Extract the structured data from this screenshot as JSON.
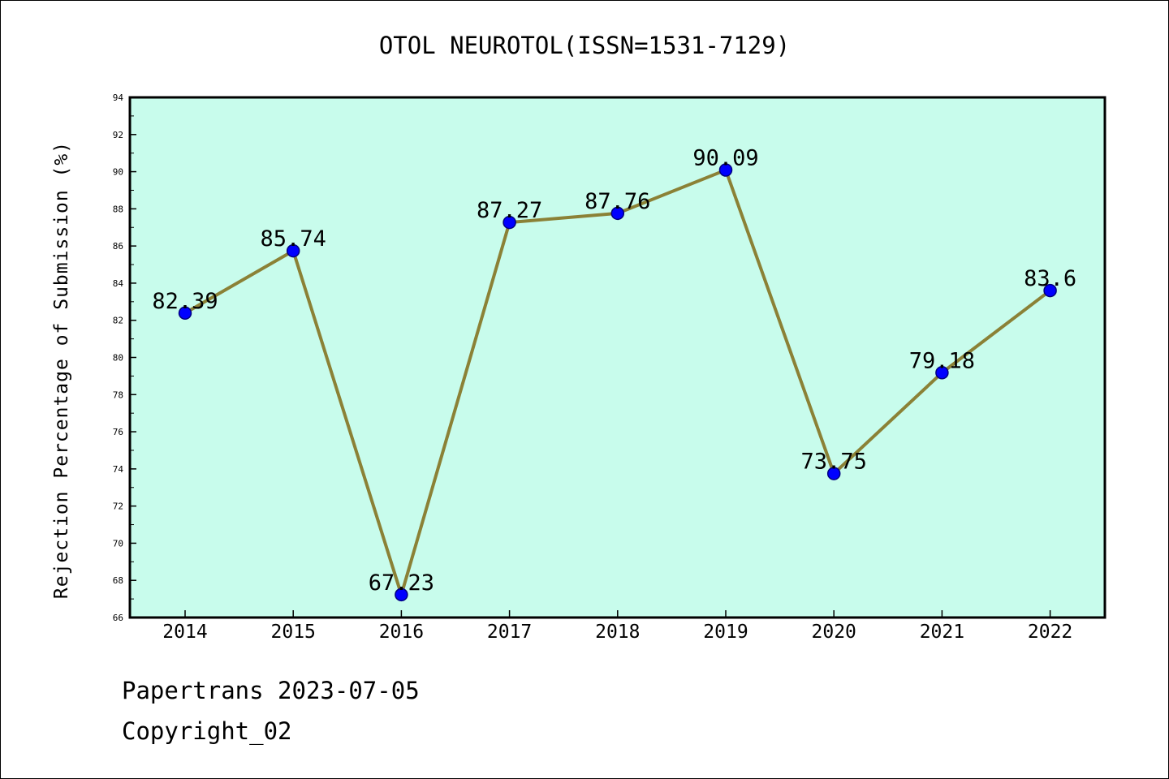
{
  "colors": {
    "plot_background": "#c8fcec",
    "line": "#8b8136",
    "marker_fill": "#0000ff",
    "marker_stroke": "#000080",
    "frame": "#000000"
  },
  "footer": {
    "line1": "Papertrans 2023-07-05",
    "line2": "Copyright_02"
  },
  "chart_data": {
    "type": "line",
    "title": "OTOL NEUROTOL(ISSN=1531-7129)",
    "xlabel": "",
    "ylabel": "Rejection Percentage of Submission (%)",
    "categories": [
      "2014",
      "2015",
      "2016",
      "2017",
      "2018",
      "2019",
      "2020",
      "2021",
      "2022"
    ],
    "values": [
      82.39,
      85.74,
      67.23,
      87.27,
      87.76,
      90.09,
      73.75,
      79.18,
      83.6
    ],
    "data_labels": [
      "82.39",
      "85.74",
      "67.23",
      "87.27",
      "87.76",
      "90.09",
      "73.75",
      "79.18",
      "83.6"
    ],
    "ylim": [
      66,
      94
    ],
    "y_major_ticks": [
      66,
      68,
      70,
      72,
      74,
      76,
      78,
      80,
      82,
      84,
      86,
      88,
      90,
      92,
      94
    ],
    "grid": false,
    "legend": "none",
    "marker": "circle"
  }
}
